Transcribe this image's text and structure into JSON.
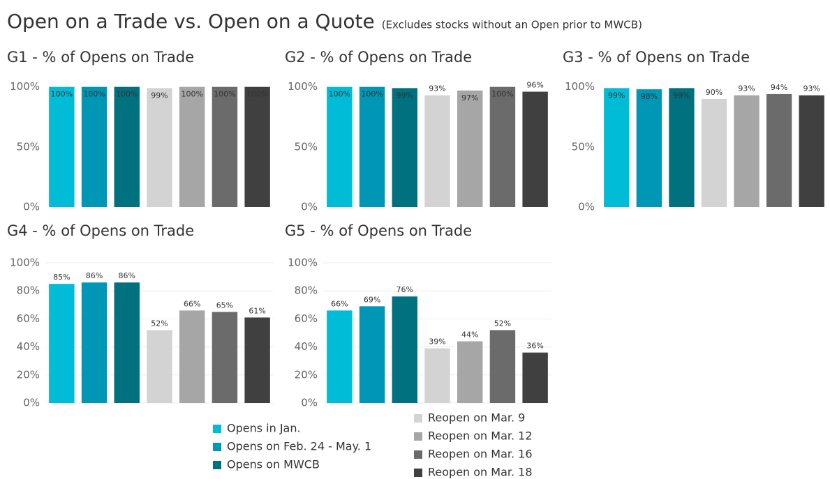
{
  "title": "Open on a Trade vs. Open on a Quote",
  "subtitle": "(Excludes stocks without an Open prior to MWCB)",
  "legend": {
    "items": [
      {
        "name": "Opens in Jan.",
        "color": "#00bcd6"
      },
      {
        "name": "Opens on Feb. 24 - May. 1",
        "color": "#0096b5"
      },
      {
        "name": "Opens on MWCB",
        "color": "#00717e"
      },
      {
        "name": "Reopen on Mar. 9",
        "color": "#d3d3d3"
      },
      {
        "name": "Reopen on Mar. 12",
        "color": "#a6a6a6"
      },
      {
        "name": "Reopen on Mar. 16",
        "color": "#6b6b6b"
      },
      {
        "name": "Reopen on Mar. 18",
        "color": "#404040"
      }
    ]
  },
  "chart_data": [
    {
      "type": "bar",
      "title": "G1 - % of Opens on Trade",
      "values": [
        100,
        100,
        100,
        99,
        100,
        100,
        100
      ],
      "value_labels": [
        "100%",
        "100%",
        "100%",
        "99%",
        "100%",
        "100%",
        "100%"
      ],
      "ylim": [
        0,
        105
      ],
      "yticks": [
        {
          "value": 0,
          "label": "0%"
        },
        {
          "value": 50,
          "label": "50%"
        },
        {
          "value": 100,
          "label": "100%"
        }
      ],
      "grid": false
    },
    {
      "type": "bar",
      "title": "G2 - % of Opens on Trade",
      "values": [
        100,
        100,
        99,
        93,
        97,
        100,
        96
      ],
      "value_labels": [
        "100%",
        "100%",
        "99%",
        "93%",
        "97%",
        "100%",
        "96%"
      ],
      "ylim": [
        0,
        105
      ],
      "yticks": [
        {
          "value": 0,
          "label": "0%"
        },
        {
          "value": 50,
          "label": "50%"
        },
        {
          "value": 100,
          "label": "100%"
        }
      ],
      "grid": false
    },
    {
      "type": "bar",
      "title": "G3 - % of Opens on Trade",
      "values": [
        99,
        98,
        99,
        90,
        93,
        94,
        93
      ],
      "value_labels": [
        "99%",
        "98%",
        "99%",
        "90%",
        "93%",
        "94%",
        "93%"
      ],
      "ylim": [
        0,
        105
      ],
      "yticks": [
        {
          "value": 0,
          "label": "0%"
        },
        {
          "value": 50,
          "label": "50%"
        },
        {
          "value": 100,
          "label": "100%"
        }
      ],
      "grid": false
    },
    {
      "type": "bar",
      "title": "G4 - % of Opens on Trade",
      "values": [
        85,
        86,
        86,
        52,
        66,
        65,
        61
      ],
      "value_labels": [
        "85%",
        "86%",
        "86%",
        "52%",
        "66%",
        "65%",
        "61%"
      ],
      "ylim": [
        0,
        100
      ],
      "yticks": [
        {
          "value": 0,
          "label": "0%"
        },
        {
          "value": 20,
          "label": "20%"
        },
        {
          "value": 40,
          "label": "40%"
        },
        {
          "value": 60,
          "label": "60%"
        },
        {
          "value": 80,
          "label": "80%"
        },
        {
          "value": 100,
          "label": "100%"
        }
      ],
      "grid": true
    },
    {
      "type": "bar",
      "title": "G5 - % of Opens on Trade",
      "values": [
        66,
        69,
        76,
        39,
        44,
        52,
        36
      ],
      "value_labels": [
        "66%",
        "69%",
        "76%",
        "39%",
        "44%",
        "52%",
        "36%"
      ],
      "ylim": [
        0,
        100
      ],
      "yticks": [
        {
          "value": 0,
          "label": "0%"
        },
        {
          "value": 20,
          "label": "20%"
        },
        {
          "value": 40,
          "label": "40%"
        },
        {
          "value": 60,
          "label": "60%"
        },
        {
          "value": 80,
          "label": "80%"
        },
        {
          "value": 100,
          "label": "100%"
        }
      ],
      "grid": true
    }
  ]
}
